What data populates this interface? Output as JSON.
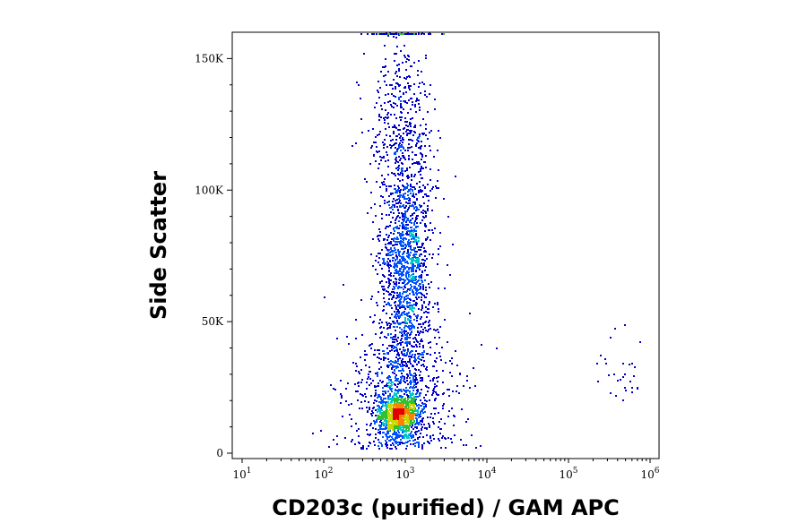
{
  "chart_data": {
    "type": "scatter",
    "xlabel": "CD203c (purified) / GAM APC",
    "ylabel": "Side Scatter",
    "x_scale": "log",
    "xlim": [
      10,
      1000000
    ],
    "ylim": [
      0,
      160000
    ],
    "x_ticks": [
      {
        "value": 10,
        "base": "10",
        "exp": "1"
      },
      {
        "value": 100,
        "base": "10",
        "exp": "2"
      },
      {
        "value": 1000,
        "base": "10",
        "exp": "3"
      },
      {
        "value": 10000,
        "base": "10",
        "exp": "4"
      },
      {
        "value": 100000,
        "base": "10",
        "exp": "5"
      },
      {
        "value": 1000000,
        "base": "10",
        "exp": "6"
      }
    ],
    "y_ticks": [
      {
        "value": 0,
        "label": "0"
      },
      {
        "value": 50000,
        "label": "50K"
      },
      {
        "value": 100000,
        "label": "100K"
      },
      {
        "value": 150000,
        "label": "150K"
      }
    ],
    "grid": false,
    "legend": "none",
    "density_colors": [
      "#0000c8",
      "#0050ff",
      "#00c8c8",
      "#30c030",
      "#c8d800",
      "#ff8000",
      "#e00000"
    ],
    "populations": [
      {
        "x_center": 800,
        "x_spread_decades": 0.13,
        "y_center": 15000,
        "y_spread": 4000,
        "count": 900
      },
      {
        "x_center": 1000,
        "x_spread_decades": 0.16,
        "y_center": 70000,
        "y_spread": 28000,
        "count": 1700
      },
      {
        "x_center": 900,
        "x_spread_decades": 0.35,
        "y_center": 22000,
        "y_spread": 15000,
        "count": 700
      },
      {
        "x_center": 800,
        "x_spread_decades": 0.2,
        "y_center": 125000,
        "y_spread": 20000,
        "count": 300
      },
      {
        "x_center": 400000,
        "x_spread_decades": 0.15,
        "y_center": 32000,
        "y_spread": 7000,
        "count": 30
      }
    ]
  }
}
